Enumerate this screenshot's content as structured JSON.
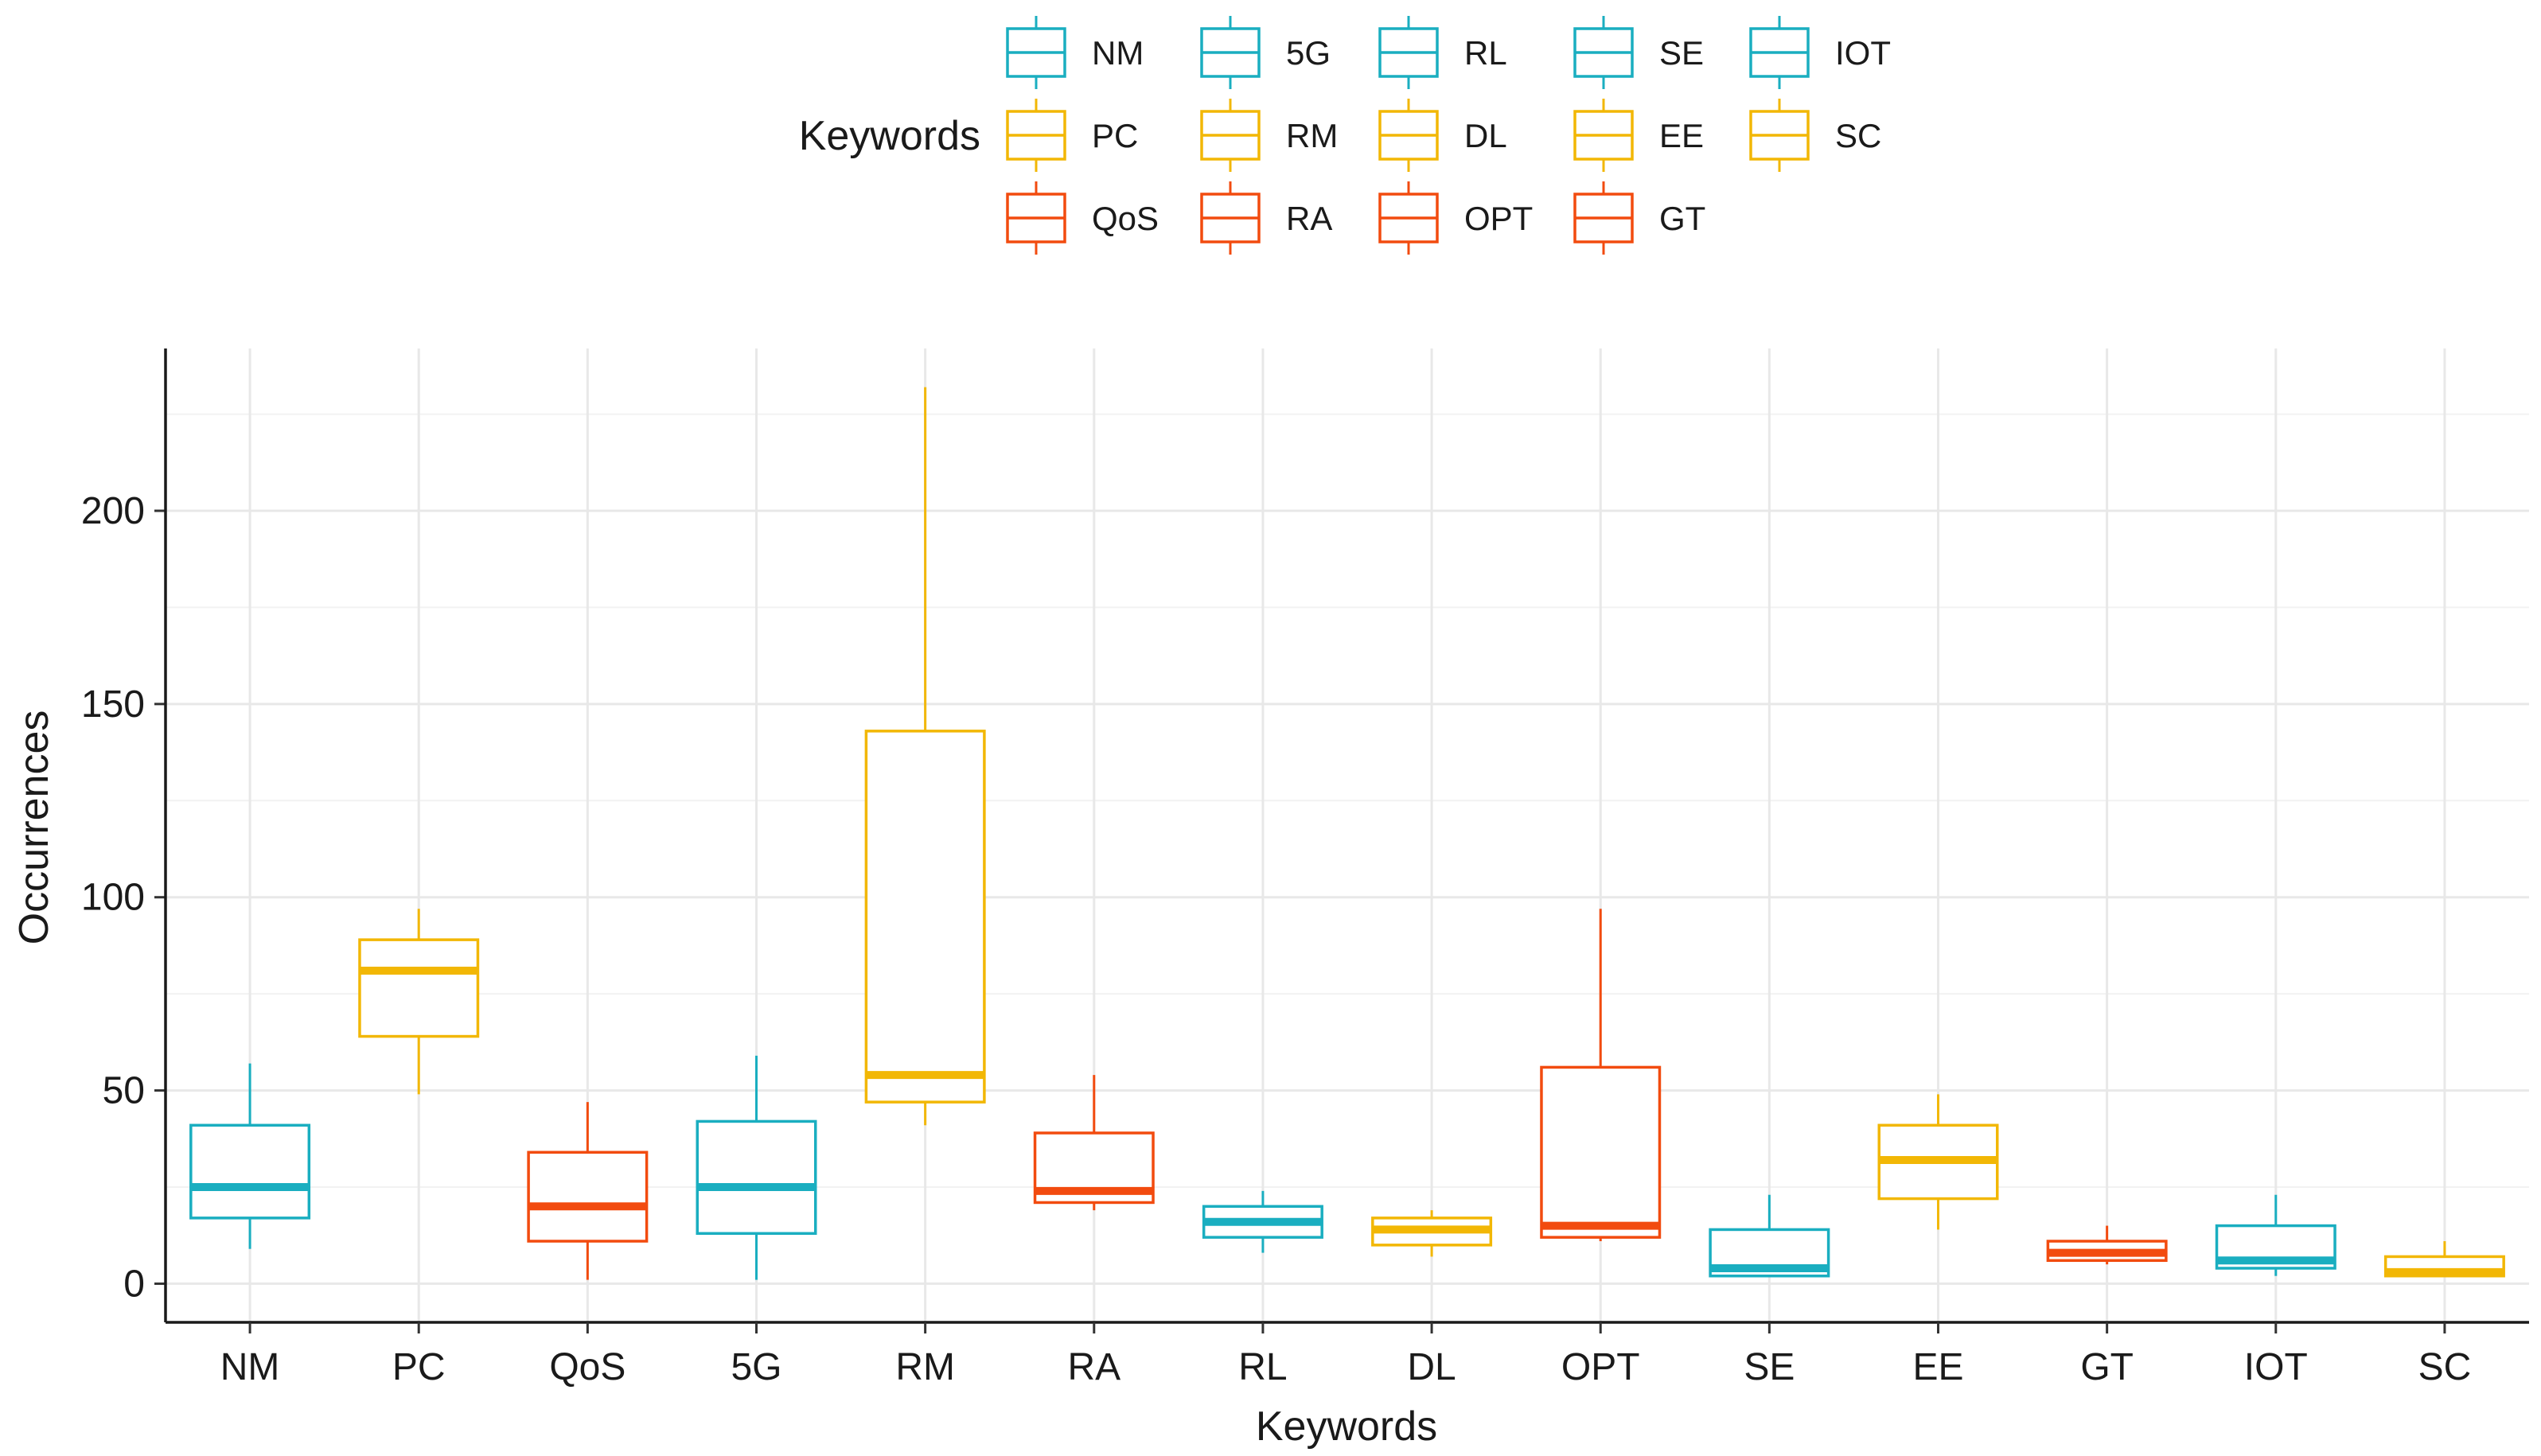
{
  "chart_data": {
    "type": "boxplot",
    "xlabel": "Keywords",
    "ylabel": "Occurrences",
    "ylim": [
      -10,
      242
    ],
    "yticks": [
      0,
      50,
      100,
      150,
      200
    ],
    "legend": {
      "title": "Keywords",
      "placement": "top",
      "entries": [
        {
          "label": "NM",
          "color": "#1aaec0"
        },
        {
          "label": "5G",
          "color": "#1aaec0"
        },
        {
          "label": "RL",
          "color": "#1aaec0"
        },
        {
          "label": "SE",
          "color": "#1aaec0"
        },
        {
          "label": "IOT",
          "color": "#1aaec0"
        },
        {
          "label": "PC",
          "color": "#f2b705"
        },
        {
          "label": "RM",
          "color": "#f2b705"
        },
        {
          "label": "DL",
          "color": "#f2b705"
        },
        {
          "label": "EE",
          "color": "#f2b705"
        },
        {
          "label": "SC",
          "color": "#f2b705"
        },
        {
          "label": "QoS",
          "color": "#f24b0f"
        },
        {
          "label": "RA",
          "color": "#f24b0f"
        },
        {
          "label": "OPT",
          "color": "#f24b0f"
        },
        {
          "label": "GT",
          "color": "#f24b0f"
        }
      ]
    },
    "categories": [
      "NM",
      "PC",
      "QoS",
      "5G",
      "RM",
      "RA",
      "RL",
      "DL",
      "OPT",
      "SE",
      "EE",
      "GT",
      "IOT",
      "SC"
    ],
    "boxes": [
      {
        "label": "NM",
        "color": "#1aaec0",
        "min": 9,
        "q1": 17,
        "median": 25,
        "q3": 41,
        "max": 57
      },
      {
        "label": "PC",
        "color": "#f2b705",
        "min": 49,
        "q1": 64,
        "median": 81,
        "q3": 89,
        "max": 97
      },
      {
        "label": "QoS",
        "color": "#f24b0f",
        "min": 1,
        "q1": 11,
        "median": 20,
        "q3": 34,
        "max": 47
      },
      {
        "label": "5G",
        "color": "#1aaec0",
        "min": 1,
        "q1": 13,
        "median": 25,
        "q3": 42,
        "max": 59
      },
      {
        "label": "RM",
        "color": "#f2b705",
        "min": 41,
        "q1": 47,
        "median": 54,
        "q3": 143,
        "max": 232
      },
      {
        "label": "RA",
        "color": "#f24b0f",
        "min": 19,
        "q1": 21,
        "median": 24,
        "q3": 39,
        "max": 54
      },
      {
        "label": "RL",
        "color": "#1aaec0",
        "min": 8,
        "q1": 12,
        "median": 16,
        "q3": 20,
        "max": 24
      },
      {
        "label": "DL",
        "color": "#f2b705",
        "min": 7,
        "q1": 10,
        "median": 14,
        "q3": 17,
        "max": 19
      },
      {
        "label": "OPT",
        "color": "#f24b0f",
        "min": 11,
        "q1": 12,
        "median": 15,
        "q3": 56,
        "max": 97
      },
      {
        "label": "SE",
        "color": "#1aaec0",
        "min": 2,
        "q1": 2,
        "median": 4,
        "q3": 14,
        "max": 23
      },
      {
        "label": "EE",
        "color": "#f2b705",
        "min": 14,
        "q1": 22,
        "median": 32,
        "q3": 41,
        "max": 49
      },
      {
        "label": "GT",
        "color": "#f24b0f",
        "min": 5,
        "q1": 6,
        "median": 8,
        "q3": 11,
        "max": 15
      },
      {
        "label": "IOT",
        "color": "#1aaec0",
        "min": 2,
        "q1": 4,
        "median": 6,
        "q3": 15,
        "max": 23
      },
      {
        "label": "SC",
        "color": "#f2b705",
        "min": 2,
        "q1": 2,
        "median": 3,
        "q3": 7,
        "max": 11
      }
    ]
  }
}
